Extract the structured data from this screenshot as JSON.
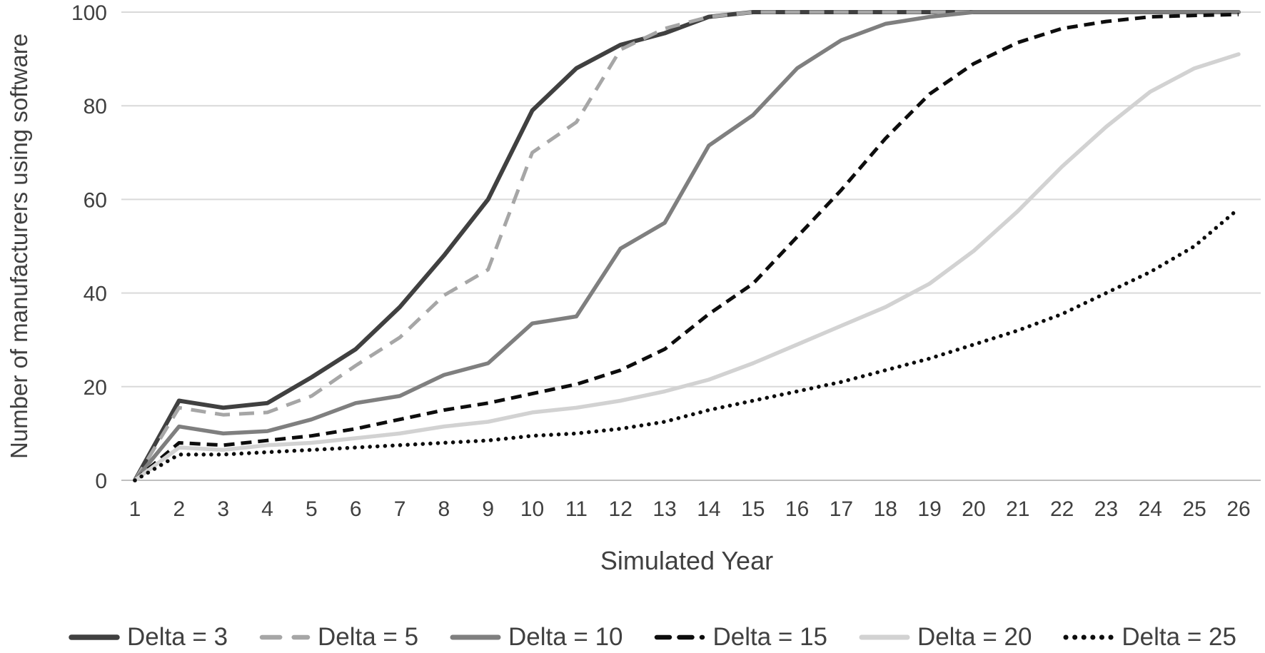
{
  "figure": {
    "background_color": "#ffffff",
    "text_color": "#404040"
  },
  "chart_data": {
    "type": "line",
    "title": "",
    "xlabel": "Simulated Year",
    "ylabel": "Number of manufacturers using software",
    "x": [
      1,
      2,
      3,
      4,
      5,
      6,
      7,
      8,
      9,
      10,
      11,
      12,
      13,
      14,
      15,
      16,
      17,
      18,
      19,
      20,
      21,
      22,
      23,
      24,
      25,
      26
    ],
    "xlim": [
      1,
      26
    ],
    "ylim": [
      0,
      100
    ],
    "yticks": [
      0,
      20,
      40,
      60,
      80,
      100
    ],
    "grid": true,
    "grid_color": "#d9d9d9",
    "axis_line_color": "#bfbfbf",
    "legend_position": "bottom",
    "series": [
      {
        "name": "Delta = 3",
        "color": "#404040",
        "style": "solid",
        "width": 6,
        "values": [
          0,
          17,
          15.5,
          16.5,
          22,
          28,
          37,
          48,
          60,
          79,
          88,
          93,
          95.5,
          99,
          100,
          100,
          100,
          100,
          100,
          100,
          100,
          100,
          100,
          100,
          100,
          100
        ]
      },
      {
        "name": "Delta = 5",
        "color": "#a6a6a6",
        "style": "dashed",
        "width": 5,
        "dash": [
          21,
          13
        ],
        "values": [
          0,
          15.5,
          14,
          14.5,
          18,
          24.5,
          30.5,
          39.5,
          45,
          70,
          76.5,
          92,
          96.5,
          99,
          100,
          100,
          100,
          100,
          100,
          100,
          100,
          100,
          100,
          100,
          100,
          100
        ]
      },
      {
        "name": "Delta = 10",
        "color": "#7f7f7f",
        "style": "solid",
        "width": 5.5,
        "values": [
          0,
          11.5,
          10,
          10.5,
          13,
          16.5,
          18,
          22.5,
          25,
          33.5,
          35,
          49.5,
          55,
          71.5,
          78,
          88,
          94,
          97.5,
          99,
          100,
          100,
          100,
          100,
          100,
          100,
          100
        ]
      },
      {
        "name": "Delta = 15",
        "color": "#0d0d0d",
        "style": "dashed",
        "width": 5,
        "dash": [
          15,
          9
        ],
        "values": [
          0,
          8,
          7.5,
          8.5,
          9.5,
          11,
          13,
          15,
          16.5,
          18.5,
          20.5,
          23.5,
          28,
          35.5,
          42,
          52,
          62,
          73,
          82.5,
          89,
          93.5,
          96.5,
          98,
          99,
          99.3,
          99.5
        ]
      },
      {
        "name": "Delta = 20",
        "color": "#d2d2d2",
        "style": "solid",
        "width": 5.5,
        "values": [
          0,
          7,
          6.5,
          7.5,
          8,
          9,
          10,
          11.5,
          12.5,
          14.5,
          15.5,
          17,
          19,
          21.5,
          25,
          29,
          33,
          37,
          42,
          49,
          57.5,
          67,
          75.5,
          83,
          88,
          91
        ]
      },
      {
        "name": "Delta = 25",
        "color": "#0d0d0d",
        "style": "dotted",
        "width": 5.5,
        "dash": [
          0.1,
          10.5
        ],
        "values": [
          0,
          5.5,
          5.5,
          6,
          6.5,
          7,
          7.5,
          8,
          8.5,
          9.5,
          10,
          11,
          12.5,
          15,
          17,
          19,
          21,
          23.5,
          26,
          29,
          32,
          35.5,
          40,
          44.5,
          50,
          58
        ]
      }
    ]
  }
}
